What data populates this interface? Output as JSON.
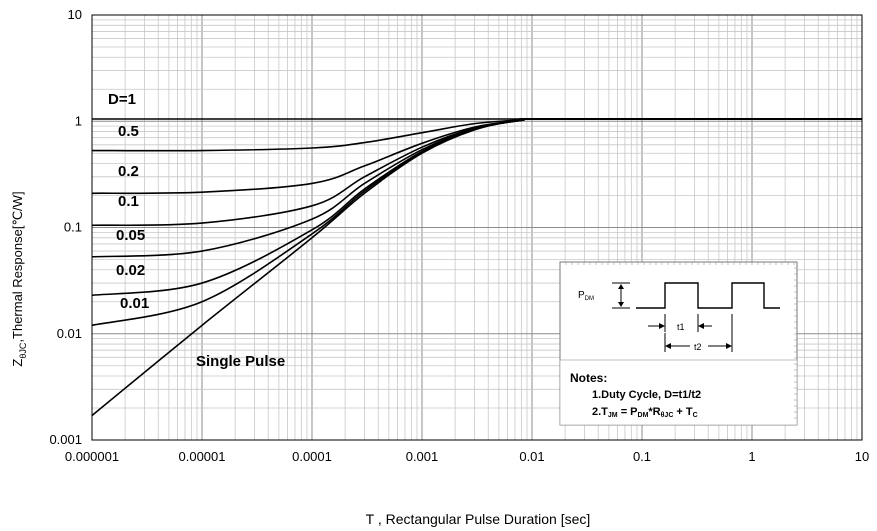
{
  "chart_data": {
    "type": "line",
    "title": "",
    "xlabel": "T , Rectangular Pulse Duration [sec]",
    "ylabel_main": "Z",
    "ylabel_sub": "θJC",
    "ylabel_rest": ",Thermal Response[℃/W]",
    "x_scale": "log",
    "y_scale": "log",
    "xlim": [
      1e-06,
      10
    ],
    "ylim": [
      0.001,
      10
    ],
    "x_tick_labels": [
      "0.000001",
      "0.00001",
      "0.0001",
      "0.001",
      "0.01",
      "0.1",
      "1",
      "10"
    ],
    "y_tick_labels": [
      "0.001",
      "0.01",
      "0.1",
      "1",
      "10"
    ],
    "grid": true,
    "series": [
      {
        "name": "D=1",
        "x": [
          1e-06,
          1e-05,
          0.0001,
          0.001,
          0.01,
          0.1,
          1,
          10
        ],
        "y": [
          1.05,
          1.05,
          1.05,
          1.05,
          1.05,
          1.05,
          1.05,
          1.05
        ]
      },
      {
        "name": "0.5",
        "x": [
          1e-06,
          1e-05,
          0.0001,
          0.0003,
          0.001,
          0.003,
          0.008,
          0.015,
          10
        ],
        "y": [
          0.53,
          0.53,
          0.56,
          0.63,
          0.78,
          0.95,
          1.03,
          1.05,
          1.05
        ]
      },
      {
        "name": "0.2",
        "x": [
          1e-06,
          1e-05,
          0.0001,
          0.0003,
          0.001,
          0.003,
          0.008,
          0.015,
          10
        ],
        "y": [
          0.21,
          0.215,
          0.26,
          0.38,
          0.62,
          0.88,
          1.02,
          1.05,
          1.05
        ]
      },
      {
        "name": "0.1",
        "x": [
          1e-06,
          1e-05,
          0.0001,
          0.0003,
          0.001,
          0.003,
          0.008,
          0.015,
          10
        ],
        "y": [
          0.105,
          0.11,
          0.16,
          0.3,
          0.57,
          0.86,
          1.02,
          1.05,
          1.05
        ]
      },
      {
        "name": "0.05",
        "x": [
          1e-06,
          1e-05,
          0.0001,
          0.0003,
          0.001,
          0.003,
          0.008,
          0.015,
          10
        ],
        "y": [
          0.053,
          0.06,
          0.12,
          0.26,
          0.54,
          0.85,
          1.02,
          1.05,
          1.05
        ]
      },
      {
        "name": "0.02",
        "x": [
          1e-06,
          1e-05,
          0.0001,
          0.0003,
          0.001,
          0.003,
          0.008,
          0.015,
          10
        ],
        "y": [
          0.023,
          0.03,
          0.095,
          0.23,
          0.52,
          0.84,
          1.02,
          1.05,
          1.05
        ]
      },
      {
        "name": "0.01",
        "x": [
          1e-06,
          1e-05,
          0.0001,
          0.0003,
          0.001,
          0.003,
          0.008,
          0.015,
          10
        ],
        "y": [
          0.012,
          0.02,
          0.087,
          0.22,
          0.51,
          0.84,
          1.02,
          1.05,
          1.05
        ]
      },
      {
        "name": "Single Pulse",
        "x": [
          1e-06,
          1e-05,
          0.0001,
          0.0003,
          0.001,
          0.003,
          0.008,
          0.015,
          10
        ],
        "y": [
          0.0017,
          0.012,
          0.08,
          0.21,
          0.5,
          0.83,
          1.02,
          1.05,
          1.05
        ]
      }
    ],
    "curve_labels": [
      "D=1",
      "0.5",
      "0.2",
      "0.1",
      "0.05",
      "0.02",
      "0.01",
      "Single Pulse"
    ],
    "inset": {
      "pdm_label": "P",
      "pdm_sub": "DM",
      "t1_label": "t1",
      "t2_label": "t2",
      "notes_title": "Notes:",
      "note1": "1.Duty  Cycle, D=t1/t2",
      "note2_parts": [
        "2.T",
        "JM",
        " = P",
        "DM",
        "*R",
        "θJC",
        " + T",
        "C"
      ]
    }
  }
}
